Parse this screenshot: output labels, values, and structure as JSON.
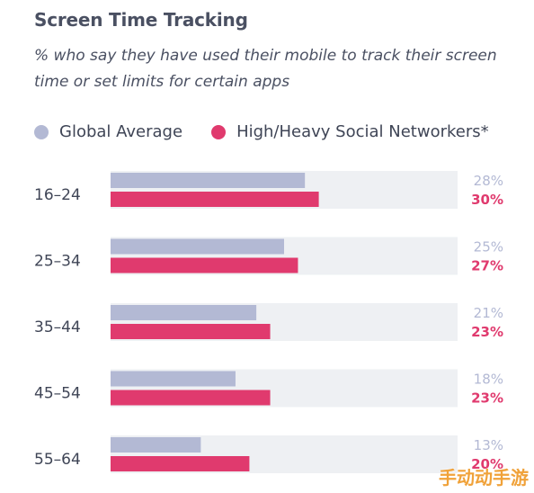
{
  "header": {
    "title": "Screen Time Tracking",
    "subtitle": "% who say they have used their mobile to track their screen time or set limits for certain apps"
  },
  "legend": {
    "items": [
      {
        "label": "Global Average",
        "color": "#b3b9d4"
      },
      {
        "label": "High/Heavy Social Networkers*",
        "color": "#e03a6e"
      }
    ]
  },
  "chart_data": {
    "type": "bar",
    "orientation": "horizontal",
    "title": "Screen Time Tracking",
    "subtitle": "% who say they have used their mobile to track their screen time or set limits for certain apps",
    "categories": [
      "16–24",
      "25–34",
      "35–44",
      "45–54",
      "55–64"
    ],
    "series": [
      {
        "name": "Global Average",
        "color": "#b3b9d4",
        "values": [
          28,
          25,
          21,
          18,
          13
        ],
        "labels": [
          "28%",
          "25%",
          "21%",
          "18%",
          "13%"
        ]
      },
      {
        "name": "High/Heavy Social Networkers*",
        "color": "#e03a6e",
        "values": [
          30,
          27,
          23,
          23,
          20
        ],
        "labels": [
          "30%",
          "27%",
          "23%",
          "23%",
          "20%"
        ]
      }
    ],
    "xlim": [
      0,
      50
    ],
    "background_track_color": "#eef0f3",
    "label_colors": [
      "#b3b9d4",
      "#e03a6e"
    ],
    "legend_position": "top-left",
    "grid": false
  },
  "watermark": {
    "text": "手动动手游"
  }
}
